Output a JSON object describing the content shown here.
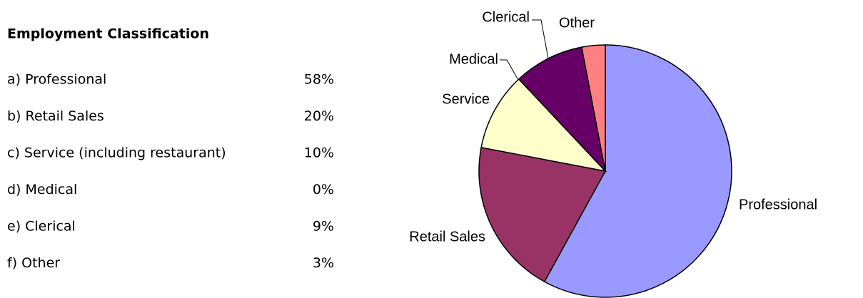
{
  "table": {
    "title": "Employment Classification",
    "rows": [
      "a) Professional",
      "b) Retail Sales",
      "c) Service (including restaurant)",
      "d) Medical",
      "e) Clerical",
      "f)  Other"
    ]
  },
  "chart_data": {
    "type": "pie",
    "categories": [
      "Professional",
      "Retail Sales",
      "Service",
      "Medical",
      "Clerical",
      "Other"
    ],
    "values": [
      58,
      20,
      10,
      0,
      9,
      3
    ],
    "value_labels": [
      "58%",
      "20%",
      "10%",
      "0%",
      "9%",
      "3%"
    ],
    "colors": [
      "#9999ff",
      "#993366",
      "#ffffcc",
      "#ccffff",
      "#660066",
      "#ff8080"
    ]
  }
}
